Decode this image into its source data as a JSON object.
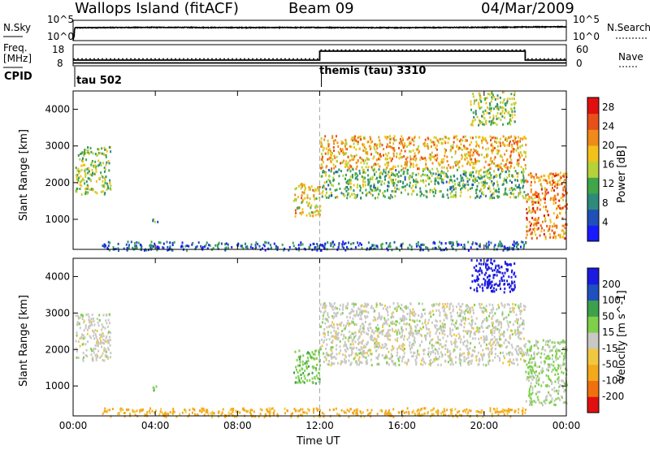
{
  "header": {
    "station": "Wallops Island (fitACF)",
    "beam": "Beam 09",
    "date": "04/Mar/2009"
  },
  "top_labels": {
    "nsky": "N.Sky",
    "nsearch": "N.Search",
    "freq": "Freq.",
    "freq_unit": "[MHz]",
    "nave": "Nave",
    "cpid": "CPID",
    "left_hi": "10^5",
    "left_lo": "10^0",
    "right_hi": "10^5",
    "right_lo": "10^0",
    "freq_hi": "18",
    "freq_lo": "8",
    "nave_hi": "60",
    "nave_lo": "0"
  },
  "cpid_segments": [
    {
      "label": "tau 502",
      "start_hour": 0
    },
    {
      "label": "themis (tau) 3310",
      "start_hour": 12
    }
  ],
  "x_axis": {
    "label": "Time UT",
    "ticks": [
      "00:00",
      "04:00",
      "08:00",
      "12:00",
      "16:00",
      "20:00",
      "00:00"
    ]
  },
  "colors": {
    "power": [
      "#1a1aff",
      "#1f4fb8",
      "#2e8a7a",
      "#3fa64a",
      "#b5d23a",
      "#f2c21a",
      "#f08a1a",
      "#e8501a",
      "#e01010"
    ],
    "velocity": [
      "#e01010",
      "#f07010",
      "#f4a81c",
      "#f0c840",
      "#c8c8c4",
      "#7ed04a",
      "#3da04a",
      "#2050c0",
      "#1a1ae0"
    ]
  },
  "chart_data": [
    {
      "type": "line",
      "title": "",
      "panel": "noise",
      "x_range_hours": [
        0,
        24
      ],
      "series": [
        {
          "name": "N.Sky",
          "x": [
            0,
            0.05,
            0.1,
            4,
            8,
            12,
            16,
            20,
            22,
            24
          ],
          "y": [
            1,
            10,
            1500,
            1800,
            1600,
            1700,
            1500,
            1900,
            2200,
            2600
          ]
        }
      ],
      "ylabel_left": "N.Sky",
      "ylabel_right": "N.Search",
      "y_ticks": [
        "10^0",
        "10^5"
      ]
    },
    {
      "type": "line",
      "title": "",
      "panel": "frequency_nave",
      "x_range_hours": [
        0,
        24
      ],
      "series": [
        {
          "name": "Freq.",
          "x": [
            0,
            11.99,
            12,
            21.99,
            22,
            24
          ],
          "y": [
            10.5,
            10.5,
            10.5,
            10.5,
            10.5,
            10.5
          ]
        },
        {
          "name": "Nave",
          "x": [
            0,
            11.99,
            12,
            21.99,
            22,
            24
          ],
          "y": [
            20,
            20,
            45,
            45,
            20,
            20
          ]
        }
      ],
      "ylim_freq": [
        8,
        18
      ],
      "ylim_nave": [
        0,
        60
      ]
    },
    {
      "type": "heatmap",
      "title": "",
      "panel": "power",
      "xlabel": "",
      "ylabel": "Slant Range [km]",
      "ylim": [
        180,
        4500
      ],
      "y_ticks": [
        1000,
        2000,
        3000,
        4000
      ],
      "colorbar_label": "Power [dB]",
      "colorbar_ticks": [
        4,
        8,
        12,
        16,
        20,
        24,
        28
      ],
      "colorbar_range": [
        0,
        30
      ],
      "echo_regions": [
        {
          "t0": 0.1,
          "t1": 1.8,
          "r0": 1700,
          "r1": 3000,
          "value": 14
        },
        {
          "t0": 1.4,
          "t1": 22,
          "r0": 180,
          "r1": 420,
          "value": 6
        },
        {
          "t0": 3.8,
          "t1": 4.1,
          "r0": 900,
          "r1": 1050,
          "value": 10
        },
        {
          "t0": 10.7,
          "t1": 12,
          "r0": 1100,
          "r1": 2000,
          "value": 18
        },
        {
          "t0": 12,
          "t1": 22,
          "r0": 2400,
          "r1": 3300,
          "value": 20
        },
        {
          "t0": 12,
          "t1": 22,
          "r0": 1600,
          "r1": 2400,
          "value": 12
        },
        {
          "t0": 19.3,
          "t1": 21.5,
          "r0": 3600,
          "r1": 4500,
          "value": 14
        },
        {
          "t0": 22,
          "t1": 24,
          "r0": 500,
          "r1": 2300,
          "value": 22
        }
      ]
    },
    {
      "type": "heatmap",
      "title": "",
      "panel": "velocity",
      "xlabel": "Time UT",
      "ylabel": "Slant Range [km]",
      "ylim": [
        180,
        4500
      ],
      "y_ticks": [
        1000,
        2000,
        3000,
        4000
      ],
      "colorbar_label": "Velocity [m s^-1]",
      "colorbar_ticks": [
        200,
        100,
        50,
        15,
        -15,
        -50,
        -100,
        -200
      ],
      "colorbar_range": [
        -250,
        250
      ],
      "echo_regions": [
        {
          "t0": 0.1,
          "t1": 1.8,
          "r0": 1700,
          "r1": 3000,
          "value": 0
        },
        {
          "t0": 1.4,
          "t1": 22,
          "r0": 180,
          "r1": 420,
          "value": -60
        },
        {
          "t0": 3.8,
          "t1": 4.1,
          "r0": 900,
          "r1": 1050,
          "value": 60
        },
        {
          "t0": 10.7,
          "t1": 12,
          "r0": 1100,
          "r1": 2000,
          "value": 40
        },
        {
          "t0": 12,
          "t1": 22,
          "r0": 1600,
          "r1": 3300,
          "value": 0
        },
        {
          "t0": 19.3,
          "t1": 21.5,
          "r0": 3600,
          "r1": 4500,
          "value": 220
        },
        {
          "t0": 22,
          "t1": 24,
          "r0": 500,
          "r1": 2300,
          "value": 20
        }
      ]
    }
  ]
}
